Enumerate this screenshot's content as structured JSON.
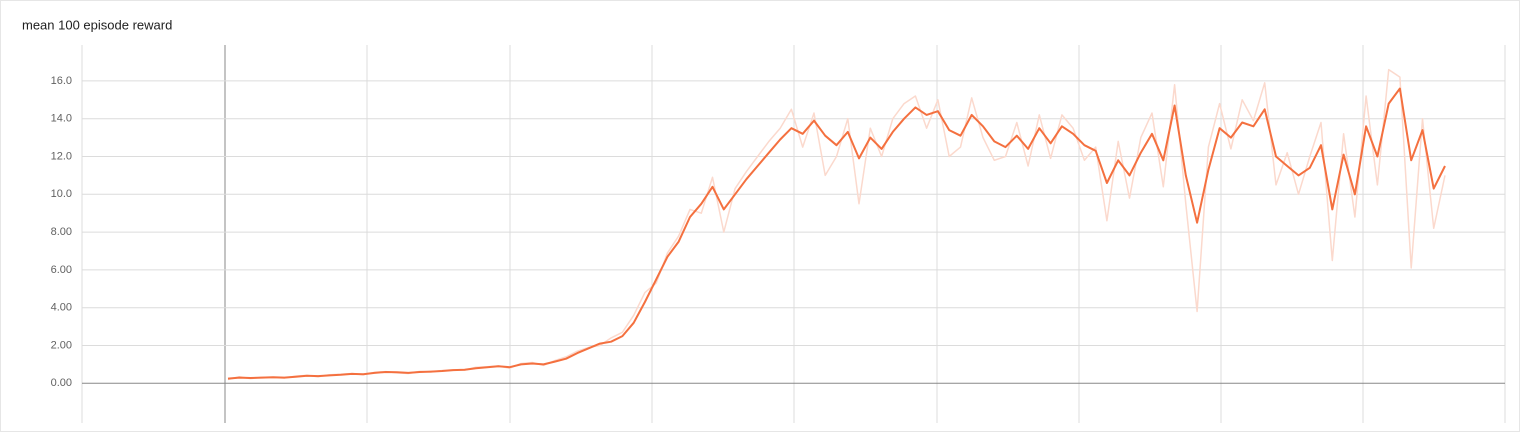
{
  "chart_data": {
    "type": "line",
    "title": "mean 100 episode reward",
    "ylim": [
      -2.1,
      17.9
    ],
    "yticks": [
      {
        "value": 0,
        "label": "0.00"
      },
      {
        "value": 2,
        "label": "2.00"
      },
      {
        "value": 4,
        "label": "4.00"
      },
      {
        "value": 6,
        "label": "6.00"
      },
      {
        "value": 8,
        "label": "8.00"
      },
      {
        "value": 10,
        "label": "10.0"
      },
      {
        "value": 12,
        "label": "12.0"
      },
      {
        "value": 14,
        "label": "14.0"
      },
      {
        "value": 16,
        "label": "16.0"
      }
    ],
    "grid": true,
    "series": [
      {
        "color": "#fbd9cd",
        "values": [
          0.2,
          0.35,
          0.25,
          0.32,
          0.3,
          0.28,
          0.38,
          0.42,
          0.35,
          0.45,
          0.48,
          0.52,
          0.45,
          0.58,
          0.62,
          0.55,
          0.52,
          0.63,
          0.6,
          0.68,
          0.72,
          0.7,
          0.85,
          0.88,
          0.92,
          0.8,
          1.05,
          1.1,
          0.95,
          1.2,
          1.4,
          1.7,
          1.9,
          2.0,
          2.4,
          2.7,
          3.6,
          4.8,
          5.3,
          6.9,
          7.8,
          9.2,
          9.0,
          10.9,
          8.0,
          10.3,
          11.2,
          12.0,
          12.8,
          13.5,
          14.5,
          12.5,
          14.3,
          11.0,
          12.0,
          14.0,
          9.5,
          13.5,
          12.0,
          14.0,
          14.8,
          15.2,
          13.5,
          15.0,
          12.0,
          12.5,
          15.1,
          13.0,
          11.8,
          12.0,
          13.8,
          11.5,
          14.2,
          11.9,
          14.2,
          13.5,
          11.8,
          12.5,
          8.6,
          12.8,
          9.8,
          13.0,
          14.3,
          10.4,
          15.8,
          9.5,
          3.8,
          12.5,
          14.8,
          12.4,
          15.0,
          13.9,
          15.9,
          10.5,
          12.2,
          10.0,
          12.0,
          13.8,
          6.5,
          13.2,
          8.8,
          15.2,
          10.5,
          16.6,
          16.2,
          6.1,
          14.0,
          8.2,
          11.0
        ]
      },
      {
        "color": "#f4703f",
        "values": [
          0.25,
          0.3,
          0.28,
          0.3,
          0.32,
          0.3,
          0.35,
          0.4,
          0.38,
          0.42,
          0.45,
          0.5,
          0.48,
          0.55,
          0.6,
          0.58,
          0.55,
          0.6,
          0.62,
          0.65,
          0.7,
          0.72,
          0.8,
          0.85,
          0.9,
          0.85,
          1.0,
          1.05,
          1.0,
          1.15,
          1.3,
          1.6,
          1.85,
          2.1,
          2.2,
          2.5,
          3.2,
          4.3,
          5.5,
          6.7,
          7.5,
          8.8,
          9.5,
          10.4,
          9.2,
          10.0,
          10.8,
          11.5,
          12.2,
          12.9,
          13.5,
          13.2,
          13.9,
          13.1,
          12.6,
          13.3,
          11.9,
          13.0,
          12.4,
          13.3,
          14.0,
          14.6,
          14.2,
          14.4,
          13.4,
          13.1,
          14.2,
          13.6,
          12.8,
          12.5,
          13.1,
          12.4,
          13.5,
          12.7,
          13.6,
          13.2,
          12.6,
          12.3,
          10.6,
          11.8,
          11.0,
          12.2,
          13.2,
          11.8,
          14.7,
          11.0,
          8.5,
          11.3,
          13.5,
          13.0,
          13.8,
          13.6,
          14.5,
          12.0,
          11.5,
          11.0,
          11.4,
          12.6,
          9.2,
          12.1,
          10.0,
          13.6,
          12.0,
          14.8,
          15.6,
          11.8,
          13.4,
          10.3,
          11.5
        ]
      }
    ]
  }
}
